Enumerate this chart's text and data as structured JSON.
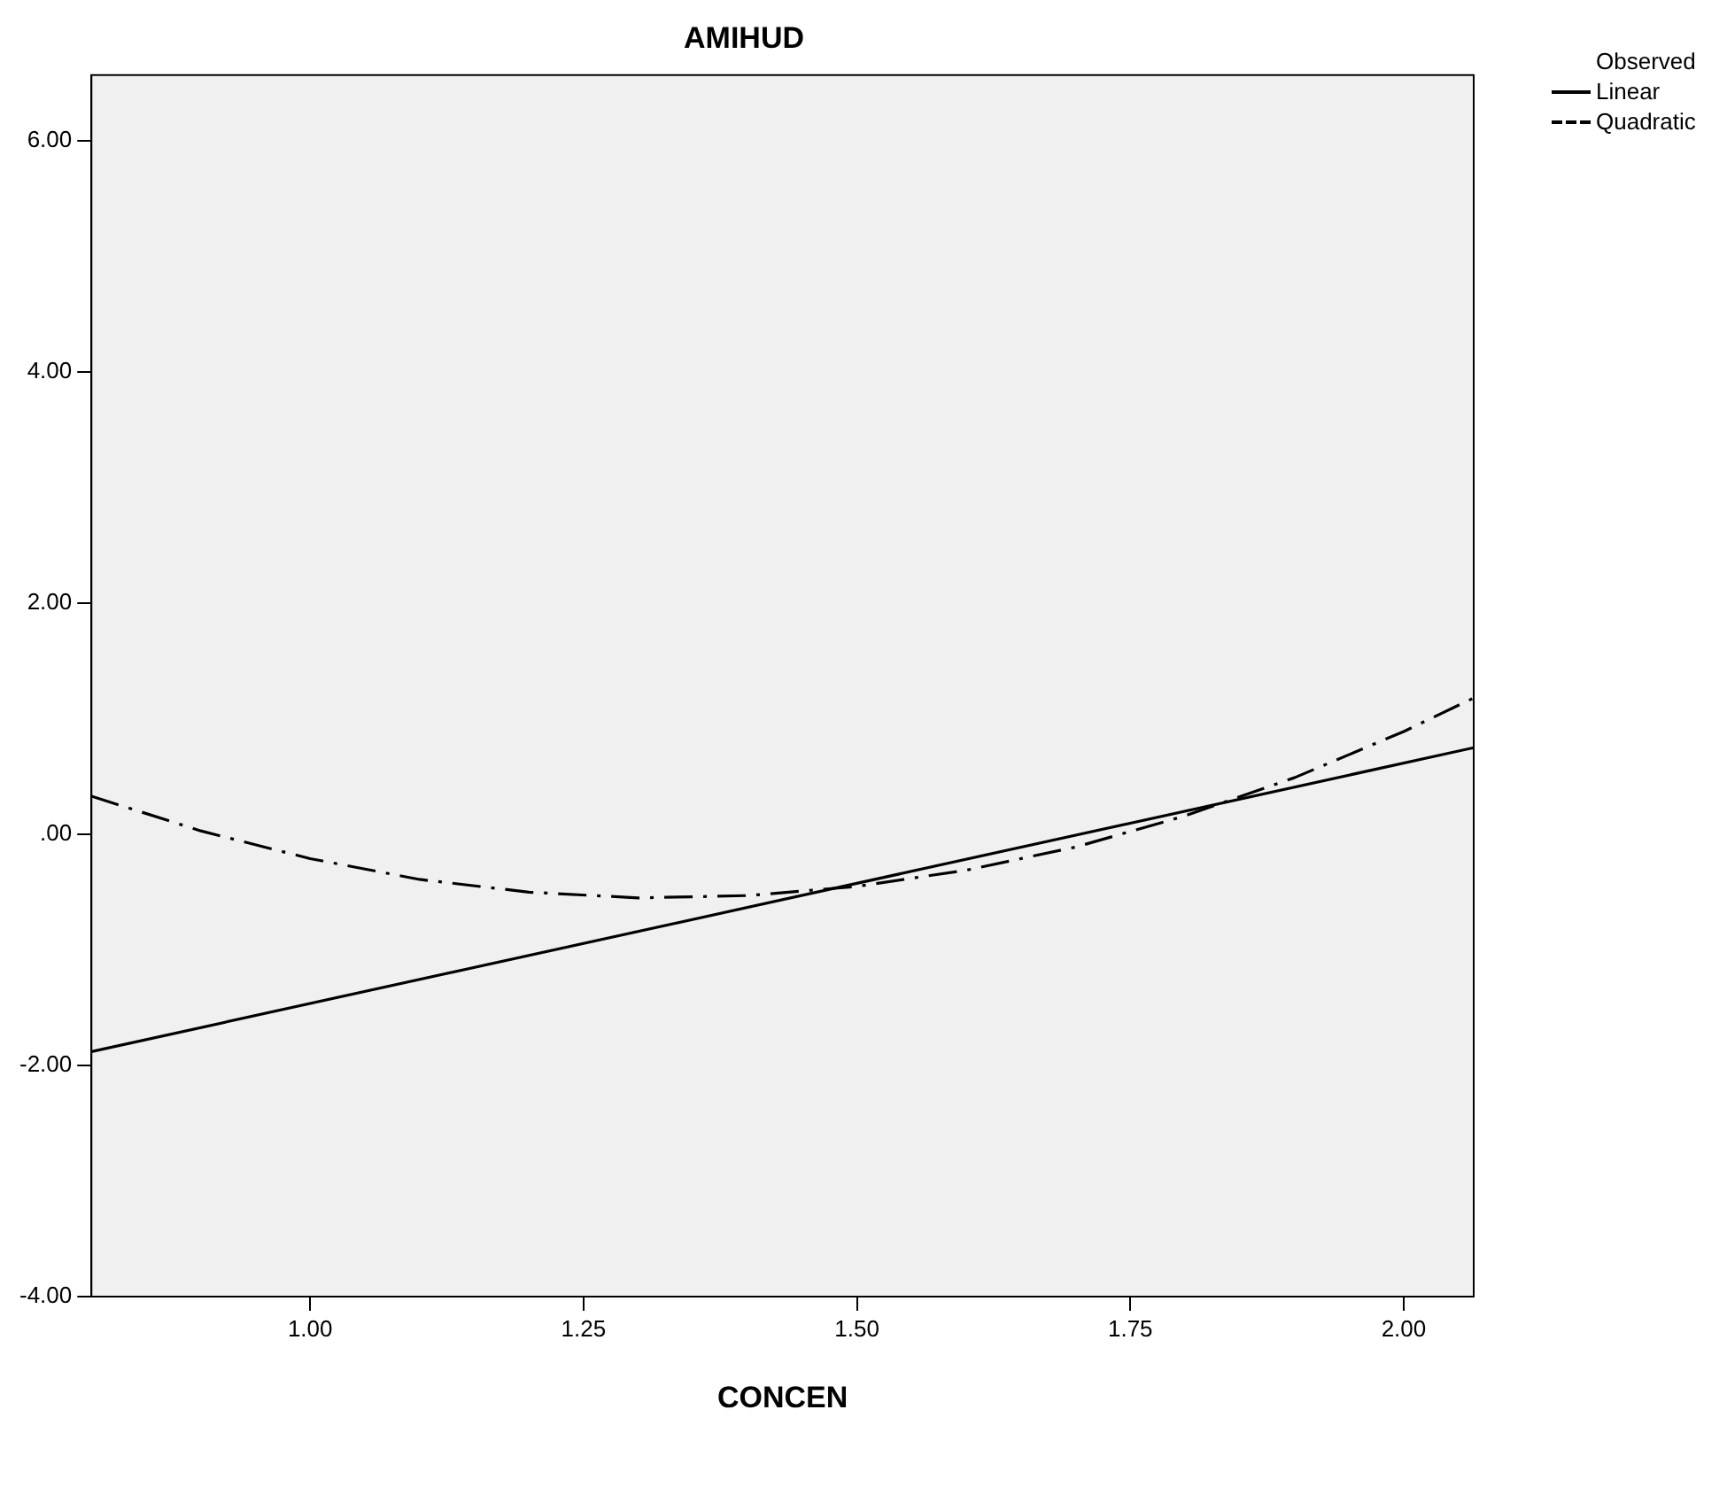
{
  "chart_data": {
    "type": "line",
    "title": "AMIHUD",
    "xlabel": "CONCEN",
    "xlim": [
      0.8,
      2.064
    ],
    "xticks": [
      {
        "value": 1,
        "label": "1.00"
      },
      {
        "value": 1.25,
        "label": "1.25"
      },
      {
        "value": 1.5,
        "label": "1.50"
      },
      {
        "value": 1.75,
        "label": "1.75"
      },
      {
        "value": 2,
        "label": "2.00"
      }
    ],
    "ylim": [
      -4,
      6.57
    ],
    "yticks": [
      {
        "value": -4,
        "label": "-4.00"
      },
      {
        "value": -2,
        "label": "-2.00"
      },
      {
        "value": 0,
        "label": ".00"
      },
      {
        "value": 2,
        "label": "2.00"
      },
      {
        "value": 4,
        "label": "4.00"
      },
      {
        "value": 6,
        "label": "6.00"
      }
    ],
    "grid": false,
    "legend": "top right",
    "marker": "none",
    "series": [
      {
        "name": "Observed",
        "type": "scatter",
        "color": "#000000"
      },
      {
        "name": "Linear",
        "color": "#000000",
        "line_style": "solid",
        "x": [
          0.8,
          2.064
        ],
        "values": [
          -1.88,
          0.75
        ]
      },
      {
        "name": "Quadratic",
        "color": "#000000",
        "line_style": "dashed",
        "x": [
          0.8,
          0.9,
          1.0,
          1.1,
          1.2,
          1.3,
          1.4,
          1.5,
          1.6,
          1.7,
          1.8,
          1.9,
          2.0,
          2.064
        ],
        "values": [
          0.33,
          0.03,
          -0.21,
          -0.39,
          -0.5,
          -0.55,
          -0.53,
          -0.45,
          -0.31,
          -0.11,
          0.16,
          0.49,
          0.89,
          1.18
        ]
      }
    ]
  }
}
